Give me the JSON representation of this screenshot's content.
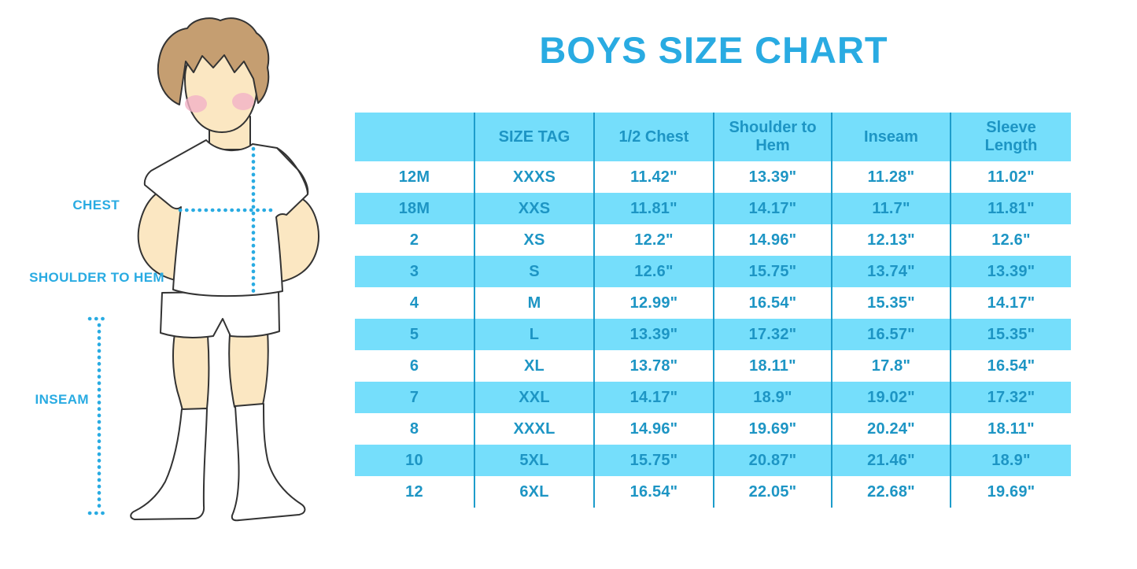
{
  "title": "BOYS SIZE CHART",
  "illustration": {
    "figure": "boy-cartoon-front-view",
    "labels": {
      "chest": "CHEST",
      "shoulder_to_hem": "SHOULDER TO HEM",
      "inseam": "INSEAM"
    }
  },
  "colors": {
    "accent_blue": "#29ABE2",
    "table_stripe_bg": "#75DEFB",
    "table_text": "#1D95C4",
    "table_divider": "#1D9CCB",
    "skin": "#FBE7C2",
    "hair": "#C59E71",
    "outline": "#333333"
  },
  "table": {
    "columns": [
      "",
      "SIZE TAG",
      "1/2 Chest",
      "Shoulder to Hem",
      "Inseam",
      "Sleeve Length"
    ],
    "rows": [
      [
        "12M",
        "XXXS",
        "11.42\"",
        "13.39\"",
        "11.28\"",
        "11.02\""
      ],
      [
        "18M",
        "XXS",
        "11.81\"",
        "14.17\"",
        "11.7\"",
        "11.81\""
      ],
      [
        "2",
        "XS",
        "12.2\"",
        "14.96\"",
        "12.13\"",
        "12.6\""
      ],
      [
        "3",
        "S",
        "12.6\"",
        "15.75\"",
        "13.74\"",
        "13.39\""
      ],
      [
        "4",
        "M",
        "12.99\"",
        "16.54\"",
        "15.35\"",
        "14.17\""
      ],
      [
        "5",
        "L",
        "13.39\"",
        "17.32\"",
        "16.57\"",
        "15.35\""
      ],
      [
        "6",
        "XL",
        "13.78\"",
        "18.11\"",
        "17.8\"",
        "16.54\""
      ],
      [
        "7",
        "XXL",
        "14.17\"",
        "18.9\"",
        "19.02\"",
        "17.32\""
      ],
      [
        "8",
        "XXXL",
        "14.96\"",
        "19.69\"",
        "20.24\"",
        "18.11\""
      ],
      [
        "10",
        "5XL",
        "15.75\"",
        "20.87\"",
        "21.46\"",
        "18.9\""
      ],
      [
        "12",
        "6XL",
        "16.54\"",
        "22.05\"",
        "22.68\"",
        "19.69\""
      ]
    ]
  }
}
